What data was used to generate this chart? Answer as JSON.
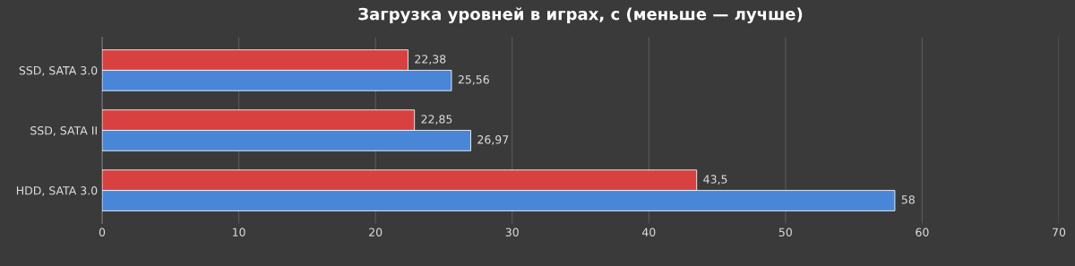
{
  "chart_data": {
    "type": "bar",
    "orientation": "horizontal",
    "title": "Загрузка уровней в играх, с (меньше — лучше)",
    "categories": [
      "SSD, SATA 3.0",
      "SSD, SATA II",
      "HDD, SATA 3.0"
    ],
    "series": [
      {
        "color": "#d94040",
        "values": [
          22.38,
          22.85,
          43.5
        ],
        "value_labels": [
          "22,38",
          "22,85",
          "43,5"
        ]
      },
      {
        "color": "#4a86d8",
        "values": [
          25.56,
          26.97,
          58
        ],
        "value_labels": [
          "25,56",
          "26,97",
          "58"
        ]
      }
    ],
    "xlim": [
      0,
      70
    ],
    "xticks": [
      0,
      10,
      20,
      30,
      40,
      50,
      60,
      70
    ],
    "grid": "x"
  }
}
